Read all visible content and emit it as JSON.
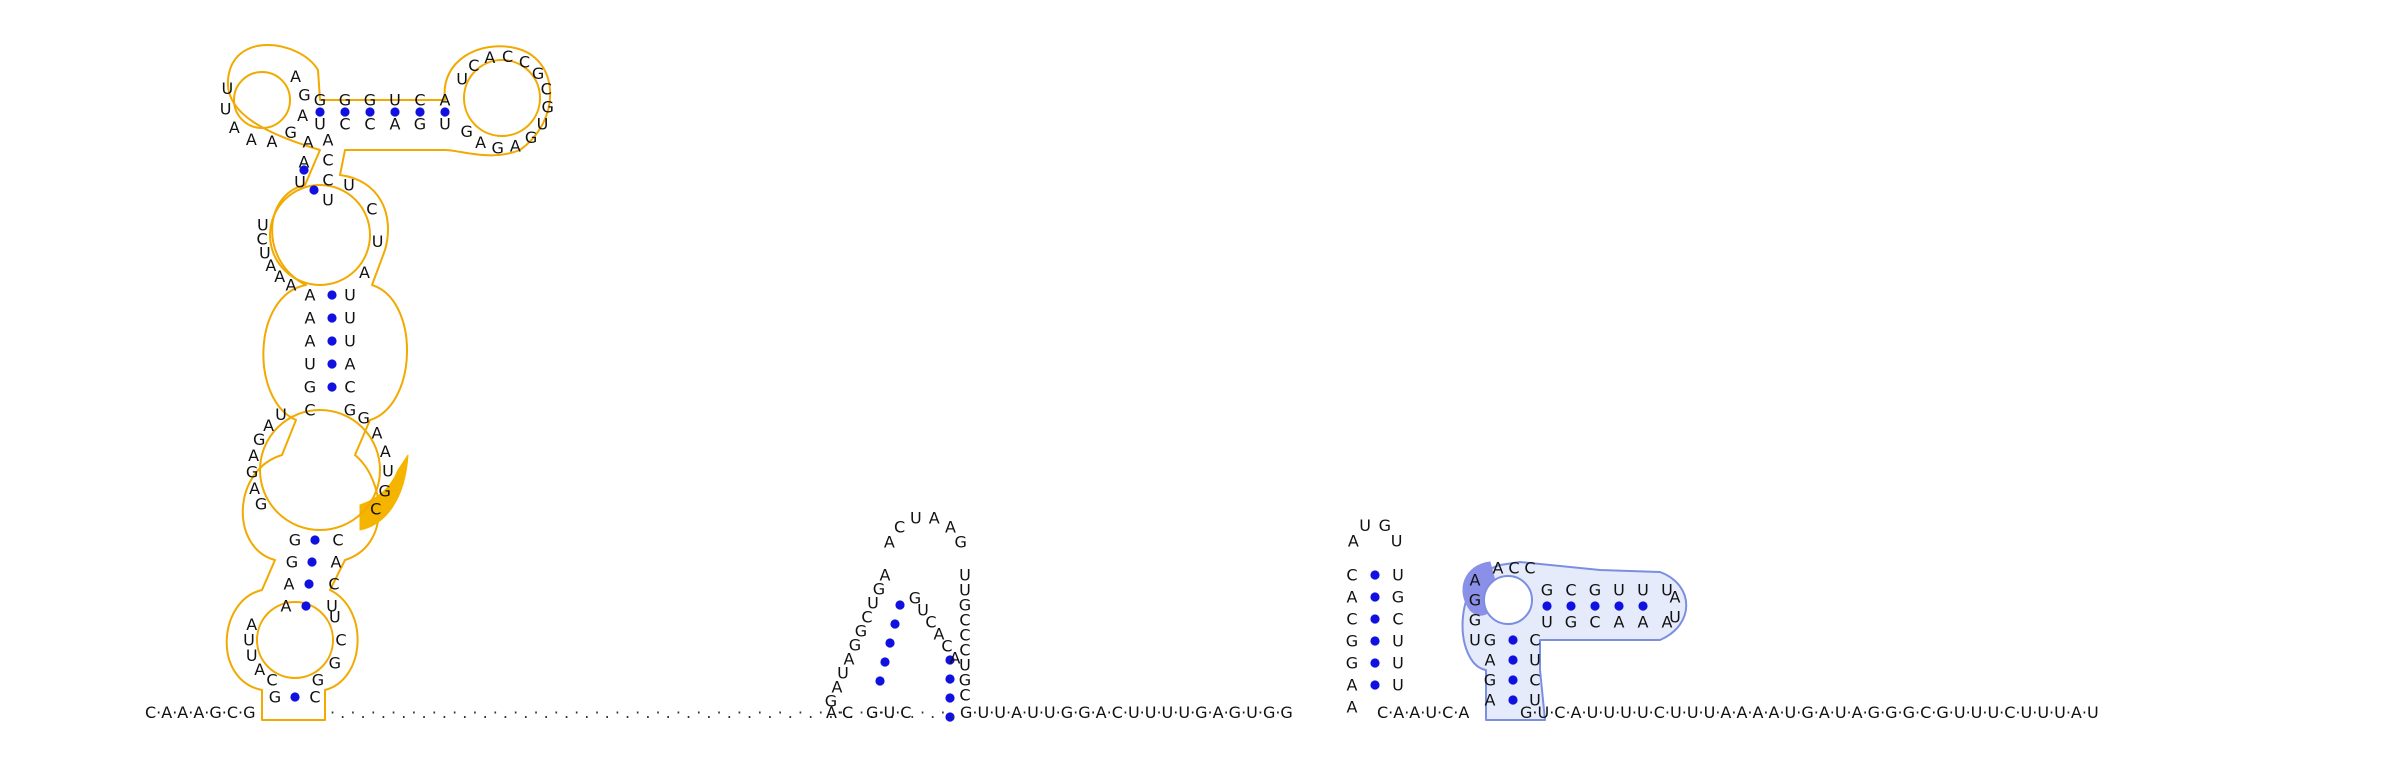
{
  "colors": {
    "orange_outline": "#f2a900",
    "orange_fill": "#fff6e0",
    "orange_highlight": "#f5b400",
    "blue_outline": "#7b8fe0",
    "blue_fill": "#e6ebfb",
    "blue_highlight": "#8a8fe8",
    "pair_dot": "#1010e0",
    "text": "#111111"
  },
  "backbone": {
    "left_sequence": "C·A·A·A·G·C·G",
    "gap_dots": "· . · . · . · . · . · . · . · . · . · . · . · . · . · . · . · . · . · . · . · . · . · . · . · . · . · . · . · . · . · . · .",
    "mid_sequence_a": "A·C",
    "mid_sequence_b": "G·U·C",
    "mid_sequence_c": "G·U·U·A·U·U·G·G·A·C·U·U·U·U·G·A·G·U·G·G",
    "mid_sequence_d": "C·A·A·U·C·A",
    "right_sequence": "G·U·C·A·U·U·U·U·C·U·U·U·A·A·A·A·U·G·A·U·A·G·G·G·C·G·U·U·U·C·U·U·U·A·U"
  },
  "structures": {
    "orange_domain": {
      "top_stem_upper": [
        "G",
        "G",
        "G",
        "U",
        "C",
        "A"
      ],
      "top_stem_lower": [
        "U",
        "C",
        "C",
        "A",
        "G",
        "U"
      ],
      "top_left_loop": [
        "A",
        "G",
        "A",
        "G",
        "A",
        "A",
        "A",
        "U",
        "U"
      ],
      "top_right_loop": [
        "U",
        "C",
        "A",
        "C",
        "C",
        "G",
        "C",
        "G",
        "U",
        "G",
        "A",
        "G",
        "A",
        "G"
      ],
      "neck_left": [
        "A",
        "A",
        "U"
      ],
      "neck_right": [
        "A",
        "C",
        "C",
        "U"
      ],
      "upper_loop_left": [
        "U",
        "C",
        "U",
        "A",
        "A",
        "A"
      ],
      "upper_loop_right": [
        "U",
        "C",
        "U",
        "A"
      ],
      "mid_stem_left": [
        "A",
        "A",
        "A",
        "U",
        "G",
        "C"
      ],
      "mid_stem_right": [
        "U",
        "U",
        "U",
        "A",
        "C",
        "G"
      ],
      "lower_loop_left": [
        "U",
        "A",
        "G",
        "A",
        "G",
        "A",
        "G"
      ],
      "lower_loop_right": [
        "G",
        "A",
        "A",
        "U",
        "G",
        "C"
      ],
      "low_stem_left": [
        "G",
        "G",
        "A",
        "A"
      ],
      "low_stem_right": [
        "C",
        "A",
        "C",
        "U"
      ],
      "base_loop_left": [
        "A",
        "U",
        "U",
        "A",
        "C"
      ],
      "base_loop_right": [
        "U",
        "C",
        "G",
        "G"
      ],
      "base_pair": [
        "G",
        "C"
      ]
    },
    "hairpin_a": {
      "loop": [
        "A",
        "C",
        "U",
        "A",
        "A",
        "G"
      ],
      "stem_left": [
        "A",
        "G",
        "U",
        "C",
        "G",
        "G",
        "A",
        "U",
        "A",
        "G"
      ],
      "stem_right": [
        "U",
        "U",
        "G",
        "C",
        "C",
        "C",
        "U",
        "G",
        "C"
      ],
      "inner": [
        "G",
        "U",
        "C",
        "A",
        "C",
        "A"
      ]
    },
    "hairpin_b": {
      "loop": [
        "A",
        "U",
        "G",
        "U"
      ],
      "stem_left": [
        "C",
        "A",
        "C",
        "G",
        "G",
        "A",
        "A"
      ],
      "stem_right": [
        "U",
        "G",
        "C",
        "U",
        "U",
        "U"
      ]
    },
    "blue_domain": {
      "loop_left": [
        "A",
        "G",
        "G",
        "U"
      ],
      "loop_top": [
        "A",
        "C",
        "C"
      ],
      "stem_upper": [
        "G",
        "C",
        "G",
        "U",
        "U",
        "U"
      ],
      "stem_lower": [
        "U",
        "G",
        "C",
        "A",
        "A",
        "A"
      ],
      "hairpin_tip": [
        "A",
        "U"
      ],
      "vertical_left": [
        "G",
        "A",
        "G",
        "A"
      ],
      "vertical_right": [
        "C",
        "U",
        "C",
        "U"
      ]
    }
  }
}
